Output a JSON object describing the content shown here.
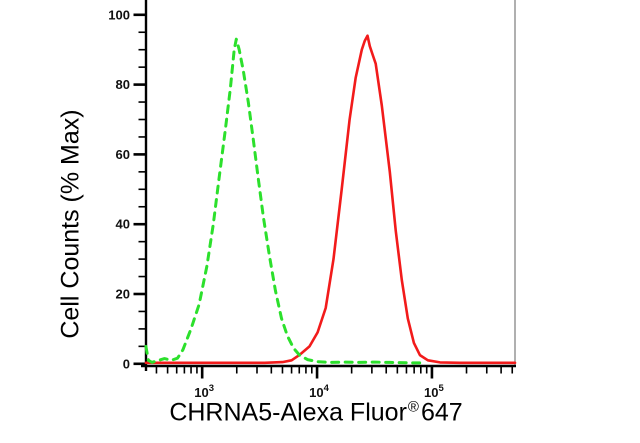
{
  "figure": {
    "background": "#ffffff",
    "axis_color": "#000000",
    "right_border_color": "#b0b0b0"
  },
  "chart_data": {
    "type": "line",
    "subtype": "flow-cytometry-overlay-histogram",
    "title": "",
    "ylabel": "Cell Counts (% Max)",
    "xlabel": {
      "prefix": "CHRNA5-Alexa Fluor",
      "sup": "®",
      "suffix": "647",
      "full": "CHRNA5-Alexa Fluor®647"
    },
    "x_axis": {
      "scale": "log10",
      "log_range": [
        2.511,
        5.723
      ],
      "xlim": [
        324,
        528000
      ],
      "decade_ticks": [
        3,
        4,
        5
      ],
      "decade_base": "10",
      "minor_tick_multiples": [
        2,
        3,
        4,
        5,
        6,
        7,
        8,
        9
      ],
      "grid": false
    },
    "y_axis": {
      "range": [
        0,
        100
      ],
      "major_ticks": [
        0,
        20,
        40,
        60,
        80,
        100
      ],
      "minor_tick_step": 5,
      "grid": false
    },
    "legend": null,
    "series": [
      {
        "name": "green-dashed-histogram",
        "color": "#2ce02c",
        "line_style": "dashed",
        "stroke_width": 3,
        "dash_pattern": [
          7,
          6.5
        ],
        "peak": {
          "x": 2000,
          "y_percent": 93
        },
        "points": [
          [
            324,
            5
          ],
          [
            340,
            1
          ],
          [
            365,
            0.4
          ],
          [
            420,
            1
          ],
          [
            470,
            1.5
          ],
          [
            540,
            1
          ],
          [
            610,
            1.6
          ],
          [
            680,
            4
          ],
          [
            800,
            10
          ],
          [
            940,
            17
          ],
          [
            1100,
            28
          ],
          [
            1250,
            40
          ],
          [
            1400,
            53
          ],
          [
            1590,
            67
          ],
          [
            1760,
            79
          ],
          [
            1900,
            90
          ],
          [
            1980,
            93
          ],
          [
            2100,
            90
          ],
          [
            2280,
            84
          ],
          [
            2520,
            75
          ],
          [
            2790,
            64
          ],
          [
            3080,
            53
          ],
          [
            3410,
            42
          ],
          [
            3850,
            31
          ],
          [
            4340,
            21
          ],
          [
            4900,
            13
          ],
          [
            5520,
            8
          ],
          [
            6240,
            4.5
          ],
          [
            7030,
            2.5
          ],
          [
            8260,
            1.2
          ],
          [
            10100,
            0.6
          ],
          [
            12900,
            0.4
          ],
          [
            17400,
            0.5
          ],
          [
            23500,
            0.4
          ],
          [
            31800,
            0.5
          ],
          [
            43000,
            0.4
          ],
          [
            64000,
            0.3
          ],
          [
            80000,
            0.25
          ]
        ]
      },
      {
        "name": "red-solid-histogram",
        "color": "#f21b1b",
        "line_style": "solid",
        "stroke_width": 2.6,
        "peak": {
          "x": 27500,
          "y_percent": 94
        },
        "points": [
          [
            324,
            0.3
          ],
          [
            1500,
            0.3
          ],
          [
            3500,
            0.3
          ],
          [
            5000,
            0.5
          ],
          [
            6000,
            1
          ],
          [
            7000,
            2.5
          ],
          [
            8600,
            5
          ],
          [
            10100,
            9
          ],
          [
            11900,
            16
          ],
          [
            13900,
            30
          ],
          [
            16400,
            50
          ],
          [
            19200,
            70
          ],
          [
            21700,
            82
          ],
          [
            24500,
            90
          ],
          [
            26000,
            92.5
          ],
          [
            27500,
            94
          ],
          [
            28800,
            91
          ],
          [
            30500,
            88.5
          ],
          [
            32400,
            86
          ],
          [
            36600,
            74
          ],
          [
            43000,
            55
          ],
          [
            48500,
            38
          ],
          [
            54700,
            24
          ],
          [
            61700,
            13
          ],
          [
            69600,
            6
          ],
          [
            78500,
            2.5
          ],
          [
            92300,
            1
          ],
          [
            117500,
            0.4
          ],
          [
            175000,
            0.3
          ],
          [
            528000,
            0.3
          ]
        ]
      }
    ]
  }
}
